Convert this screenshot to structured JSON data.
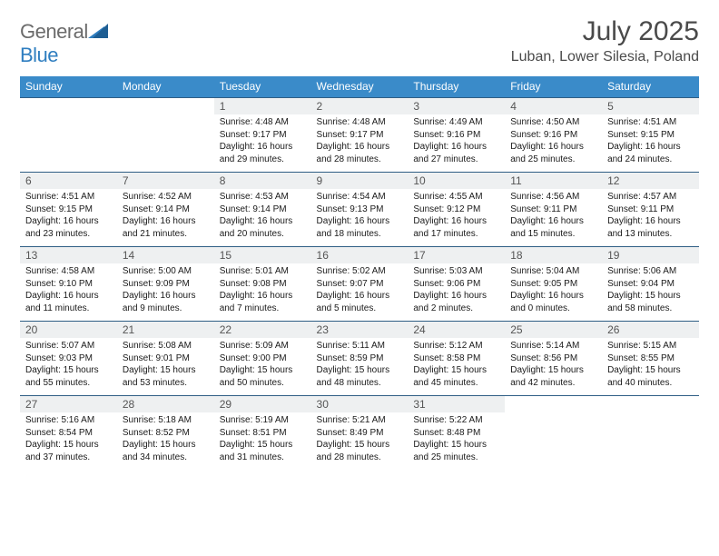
{
  "brand": {
    "part1": "General",
    "part2": "Blue"
  },
  "title": "July 2025",
  "location": "Luban, Lower Silesia, Poland",
  "day_headers": [
    "Sunday",
    "Monday",
    "Tuesday",
    "Wednesday",
    "Thursday",
    "Friday",
    "Saturday"
  ],
  "colors": {
    "header_bg": "#3a8bc9",
    "header_text": "#ffffff",
    "rule": "#2f5e85",
    "daynum_bg": "#eef0f1",
    "brand_gray": "#6b6b6b",
    "brand_blue": "#2f7ec0"
  },
  "weeks": [
    [
      null,
      null,
      {
        "n": "1",
        "l1": "Sunrise: 4:48 AM",
        "l2": "Sunset: 9:17 PM",
        "l3": "Daylight: 16 hours",
        "l4": "and 29 minutes."
      },
      {
        "n": "2",
        "l1": "Sunrise: 4:48 AM",
        "l2": "Sunset: 9:17 PM",
        "l3": "Daylight: 16 hours",
        "l4": "and 28 minutes."
      },
      {
        "n": "3",
        "l1": "Sunrise: 4:49 AM",
        "l2": "Sunset: 9:16 PM",
        "l3": "Daylight: 16 hours",
        "l4": "and 27 minutes."
      },
      {
        "n": "4",
        "l1": "Sunrise: 4:50 AM",
        "l2": "Sunset: 9:16 PM",
        "l3": "Daylight: 16 hours",
        "l4": "and 25 minutes."
      },
      {
        "n": "5",
        "l1": "Sunrise: 4:51 AM",
        "l2": "Sunset: 9:15 PM",
        "l3": "Daylight: 16 hours",
        "l4": "and 24 minutes."
      }
    ],
    [
      {
        "n": "6",
        "l1": "Sunrise: 4:51 AM",
        "l2": "Sunset: 9:15 PM",
        "l3": "Daylight: 16 hours",
        "l4": "and 23 minutes."
      },
      {
        "n": "7",
        "l1": "Sunrise: 4:52 AM",
        "l2": "Sunset: 9:14 PM",
        "l3": "Daylight: 16 hours",
        "l4": "and 21 minutes."
      },
      {
        "n": "8",
        "l1": "Sunrise: 4:53 AM",
        "l2": "Sunset: 9:14 PM",
        "l3": "Daylight: 16 hours",
        "l4": "and 20 minutes."
      },
      {
        "n": "9",
        "l1": "Sunrise: 4:54 AM",
        "l2": "Sunset: 9:13 PM",
        "l3": "Daylight: 16 hours",
        "l4": "and 18 minutes."
      },
      {
        "n": "10",
        "l1": "Sunrise: 4:55 AM",
        "l2": "Sunset: 9:12 PM",
        "l3": "Daylight: 16 hours",
        "l4": "and 17 minutes."
      },
      {
        "n": "11",
        "l1": "Sunrise: 4:56 AM",
        "l2": "Sunset: 9:11 PM",
        "l3": "Daylight: 16 hours",
        "l4": "and 15 minutes."
      },
      {
        "n": "12",
        "l1": "Sunrise: 4:57 AM",
        "l2": "Sunset: 9:11 PM",
        "l3": "Daylight: 16 hours",
        "l4": "and 13 minutes."
      }
    ],
    [
      {
        "n": "13",
        "l1": "Sunrise: 4:58 AM",
        "l2": "Sunset: 9:10 PM",
        "l3": "Daylight: 16 hours",
        "l4": "and 11 minutes."
      },
      {
        "n": "14",
        "l1": "Sunrise: 5:00 AM",
        "l2": "Sunset: 9:09 PM",
        "l3": "Daylight: 16 hours",
        "l4": "and 9 minutes."
      },
      {
        "n": "15",
        "l1": "Sunrise: 5:01 AM",
        "l2": "Sunset: 9:08 PM",
        "l3": "Daylight: 16 hours",
        "l4": "and 7 minutes."
      },
      {
        "n": "16",
        "l1": "Sunrise: 5:02 AM",
        "l2": "Sunset: 9:07 PM",
        "l3": "Daylight: 16 hours",
        "l4": "and 5 minutes."
      },
      {
        "n": "17",
        "l1": "Sunrise: 5:03 AM",
        "l2": "Sunset: 9:06 PM",
        "l3": "Daylight: 16 hours",
        "l4": "and 2 minutes."
      },
      {
        "n": "18",
        "l1": "Sunrise: 5:04 AM",
        "l2": "Sunset: 9:05 PM",
        "l3": "Daylight: 16 hours",
        "l4": "and 0 minutes."
      },
      {
        "n": "19",
        "l1": "Sunrise: 5:06 AM",
        "l2": "Sunset: 9:04 PM",
        "l3": "Daylight: 15 hours",
        "l4": "and 58 minutes."
      }
    ],
    [
      {
        "n": "20",
        "l1": "Sunrise: 5:07 AM",
        "l2": "Sunset: 9:03 PM",
        "l3": "Daylight: 15 hours",
        "l4": "and 55 minutes."
      },
      {
        "n": "21",
        "l1": "Sunrise: 5:08 AM",
        "l2": "Sunset: 9:01 PM",
        "l3": "Daylight: 15 hours",
        "l4": "and 53 minutes."
      },
      {
        "n": "22",
        "l1": "Sunrise: 5:09 AM",
        "l2": "Sunset: 9:00 PM",
        "l3": "Daylight: 15 hours",
        "l4": "and 50 minutes."
      },
      {
        "n": "23",
        "l1": "Sunrise: 5:11 AM",
        "l2": "Sunset: 8:59 PM",
        "l3": "Daylight: 15 hours",
        "l4": "and 48 minutes."
      },
      {
        "n": "24",
        "l1": "Sunrise: 5:12 AM",
        "l2": "Sunset: 8:58 PM",
        "l3": "Daylight: 15 hours",
        "l4": "and 45 minutes."
      },
      {
        "n": "25",
        "l1": "Sunrise: 5:14 AM",
        "l2": "Sunset: 8:56 PM",
        "l3": "Daylight: 15 hours",
        "l4": "and 42 minutes."
      },
      {
        "n": "26",
        "l1": "Sunrise: 5:15 AM",
        "l2": "Sunset: 8:55 PM",
        "l3": "Daylight: 15 hours",
        "l4": "and 40 minutes."
      }
    ],
    [
      {
        "n": "27",
        "l1": "Sunrise: 5:16 AM",
        "l2": "Sunset: 8:54 PM",
        "l3": "Daylight: 15 hours",
        "l4": "and 37 minutes."
      },
      {
        "n": "28",
        "l1": "Sunrise: 5:18 AM",
        "l2": "Sunset: 8:52 PM",
        "l3": "Daylight: 15 hours",
        "l4": "and 34 minutes."
      },
      {
        "n": "29",
        "l1": "Sunrise: 5:19 AM",
        "l2": "Sunset: 8:51 PM",
        "l3": "Daylight: 15 hours",
        "l4": "and 31 minutes."
      },
      {
        "n": "30",
        "l1": "Sunrise: 5:21 AM",
        "l2": "Sunset: 8:49 PM",
        "l3": "Daylight: 15 hours",
        "l4": "and 28 minutes."
      },
      {
        "n": "31",
        "l1": "Sunrise: 5:22 AM",
        "l2": "Sunset: 8:48 PM",
        "l3": "Daylight: 15 hours",
        "l4": "and 25 minutes."
      },
      null,
      null
    ]
  ]
}
